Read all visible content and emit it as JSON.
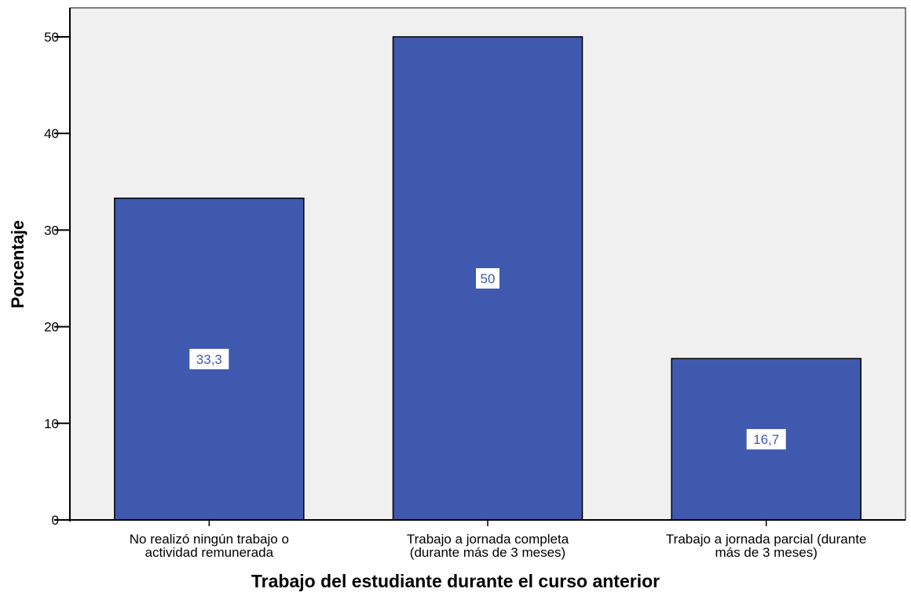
{
  "chart_data": {
    "type": "bar",
    "title": "",
    "xlabel": "Trabajo del estudiante durante el curso anterior",
    "ylabel": "Porcentaje",
    "ylim": [
      0,
      53
    ],
    "yticks": [
      0,
      10,
      20,
      30,
      40,
      50
    ],
    "grid": false,
    "categories": [
      [
        "No realizó ningún trabajo o",
        "actividad remunerada"
      ],
      [
        "Trabajo a jornada completa",
        "(durante más de 3 meses)"
      ],
      [
        "Trabajo a jornada parcial (durante",
        "más de 3 meses)"
      ]
    ],
    "values": [
      33.3,
      50,
      16.7
    ],
    "data_labels": [
      "33,3",
      "50",
      "16,7"
    ],
    "colors": {
      "bar": "#3f59ae",
      "bar_stroke": "#000000",
      "plot_background": "#f0f0f0",
      "label_text": "#3f59ae"
    }
  }
}
